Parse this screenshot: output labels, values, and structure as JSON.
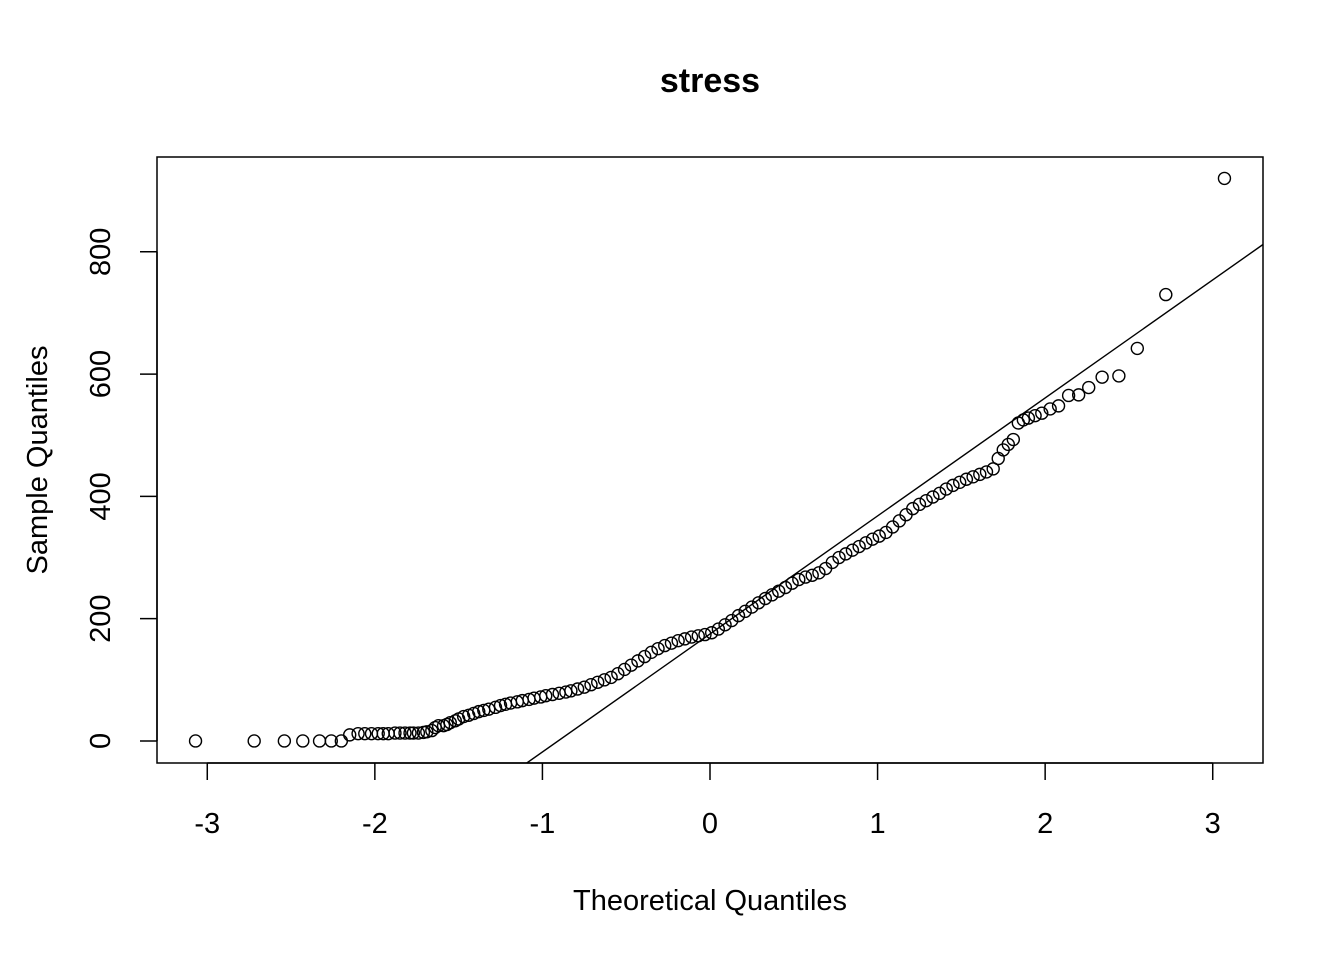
{
  "chart_data": {
    "type": "scatter",
    "title": "stress",
    "xlabel": "Theoretical Quantiles",
    "ylabel": "Sample Quantiles",
    "xlim": [
      -3.3,
      3.3
    ],
    "ylim": [
      -36,
      955
    ],
    "x_ticks": [
      -3,
      -2,
      -1,
      0,
      1,
      2,
      3
    ],
    "x_tick_labels": [
      "-3",
      "-2",
      "-1",
      "0",
      "1",
      "2",
      "3"
    ],
    "y_ticks": [
      0,
      200,
      400,
      600,
      800
    ],
    "y_tick_labels": [
      "0",
      "200",
      "400",
      "600",
      "800"
    ],
    "grid": false,
    "colors": {
      "points": "#000000",
      "line": "#000000",
      "background": "#ffffff"
    },
    "reference_line": {
      "slope": 193,
      "intercept": 175
    },
    "points": [
      [
        -3.07,
        0
      ],
      [
        -2.72,
        0
      ],
      [
        -2.54,
        0
      ],
      [
        -2.43,
        0
      ],
      [
        -2.33,
        0
      ],
      [
        -2.26,
        0
      ],
      [
        -2.2,
        0
      ],
      [
        -2.15,
        10
      ],
      [
        -2.1,
        12
      ],
      [
        -2.06,
        12
      ],
      [
        -2.02,
        12
      ],
      [
        -1.98,
        12
      ],
      [
        -1.95,
        12
      ],
      [
        -1.92,
        12
      ],
      [
        -1.88,
        13
      ],
      [
        -1.85,
        13
      ],
      [
        -1.82,
        13
      ],
      [
        -1.79,
        13
      ],
      [
        -1.77,
        13
      ],
      [
        -1.74,
        13
      ],
      [
        -1.71,
        14
      ],
      [
        -1.69,
        15
      ],
      [
        -1.66,
        17
      ],
      [
        -1.64,
        22
      ],
      [
        -1.62,
        25
      ],
      [
        -1.59,
        25
      ],
      [
        -1.57,
        27
      ],
      [
        -1.55,
        30
      ],
      [
        -1.52,
        33
      ],
      [
        -1.5,
        36
      ],
      [
        -1.47,
        40
      ],
      [
        -1.44,
        42
      ],
      [
        -1.41,
        45
      ],
      [
        -1.38,
        48
      ],
      [
        -1.35,
        50
      ],
      [
        -1.32,
        52
      ],
      [
        -1.28,
        55
      ],
      [
        -1.25,
        58
      ],
      [
        -1.22,
        60
      ],
      [
        -1.19,
        62
      ],
      [
        -1.15,
        64
      ],
      [
        -1.12,
        66
      ],
      [
        -1.08,
        68
      ],
      [
        -1.05,
        70
      ],
      [
        -1.01,
        72
      ],
      [
        -0.98,
        74
      ],
      [
        -0.94,
        76
      ],
      [
        -0.9,
        78
      ],
      [
        -0.86,
        80
      ],
      [
        -0.83,
        82
      ],
      [
        -0.79,
        85
      ],
      [
        -0.75,
        88
      ],
      [
        -0.71,
        92
      ],
      [
        -0.67,
        96
      ],
      [
        -0.63,
        100
      ],
      [
        -0.59,
        104
      ],
      [
        -0.55,
        110
      ],
      [
        -0.51,
        117
      ],
      [
        -0.47,
        124
      ],
      [
        -0.43,
        131
      ],
      [
        -0.39,
        138
      ],
      [
        -0.35,
        145
      ],
      [
        -0.31,
        151
      ],
      [
        -0.27,
        156
      ],
      [
        -0.23,
        160
      ],
      [
        -0.19,
        164
      ],
      [
        -0.15,
        167
      ],
      [
        -0.11,
        170
      ],
      [
        -0.07,
        172
      ],
      [
        -0.03,
        174
      ],
      [
        0.01,
        177
      ],
      [
        0.05,
        183
      ],
      [
        0.09,
        190
      ],
      [
        0.13,
        197
      ],
      [
        0.17,
        205
      ],
      [
        0.21,
        212
      ],
      [
        0.25,
        219
      ],
      [
        0.29,
        226
      ],
      [
        0.33,
        233
      ],
      [
        0.37,
        239
      ],
      [
        0.41,
        245
      ],
      [
        0.45,
        251
      ],
      [
        0.49,
        258
      ],
      [
        0.53,
        264
      ],
      [
        0.57,
        268
      ],
      [
        0.61,
        271
      ],
      [
        0.65,
        275
      ],
      [
        0.69,
        282
      ],
      [
        0.73,
        292
      ],
      [
        0.77,
        300
      ],
      [
        0.81,
        306
      ],
      [
        0.85,
        312
      ],
      [
        0.89,
        318
      ],
      [
        0.93,
        324
      ],
      [
        0.97,
        330
      ],
      [
        1.01,
        335
      ],
      [
        1.05,
        341
      ],
      [
        1.09,
        350
      ],
      [
        1.13,
        360
      ],
      [
        1.17,
        370
      ],
      [
        1.21,
        380
      ],
      [
        1.25,
        387
      ],
      [
        1.29,
        393
      ],
      [
        1.33,
        399
      ],
      [
        1.37,
        405
      ],
      [
        1.41,
        412
      ],
      [
        1.45,
        418
      ],
      [
        1.49,
        423
      ],
      [
        1.53,
        428
      ],
      [
        1.57,
        432
      ],
      [
        1.61,
        436
      ],
      [
        1.65,
        440
      ],
      [
        1.69,
        445
      ],
      [
        1.72,
        462
      ],
      [
        1.75,
        476
      ],
      [
        1.78,
        485
      ],
      [
        1.81,
        493
      ],
      [
        1.84,
        520
      ],
      [
        1.87,
        525
      ],
      [
        1.9,
        528
      ],
      [
        1.94,
        532
      ],
      [
        1.98,
        536
      ],
      [
        2.03,
        543
      ],
      [
        2.08,
        548
      ],
      [
        2.14,
        565
      ],
      [
        2.2,
        566
      ],
      [
        2.26,
        578
      ],
      [
        2.34,
        595
      ],
      [
        2.44,
        597
      ],
      [
        2.55,
        642
      ],
      [
        2.72,
        730
      ],
      [
        3.07,
        920
      ]
    ]
  }
}
